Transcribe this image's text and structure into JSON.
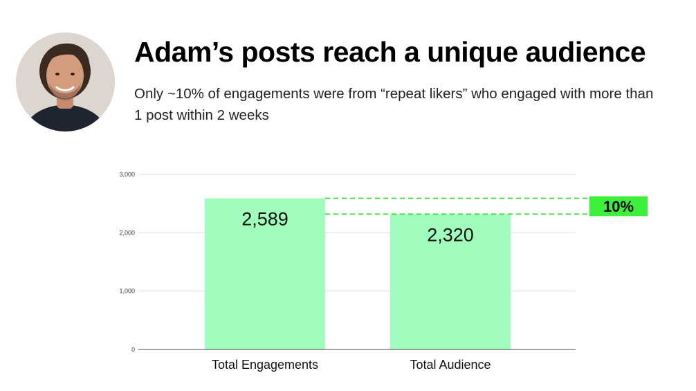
{
  "header": {
    "title": "Adam’s posts reach a unique audience",
    "subtitle": "Only ~10% of engagements were from “repeat likers” who engaged with more than 1 post within 2 weeks"
  },
  "avatar": {
    "icon": "person-photo"
  },
  "colors": {
    "bar": "#a1fdbd",
    "highlight": "#3cf03c",
    "dashed": "#3fe33f",
    "grid": "#dddddd",
    "axis": "#444444"
  },
  "chart_data": {
    "type": "bar",
    "categories": [
      "Total Engagements",
      "Total Audience"
    ],
    "values": [
      2589,
      2320
    ],
    "data_labels": [
      "2,589",
      "2,320"
    ],
    "ylim": [
      0,
      3000
    ],
    "yticks": [
      0,
      1000,
      2000,
      3000
    ],
    "ytick_labels": [
      "0",
      "1,000",
      "2,000",
      "3,000"
    ],
    "grid": true,
    "annotation": {
      "label": "10%",
      "from_value": 2589,
      "to_value": 2320
    }
  }
}
